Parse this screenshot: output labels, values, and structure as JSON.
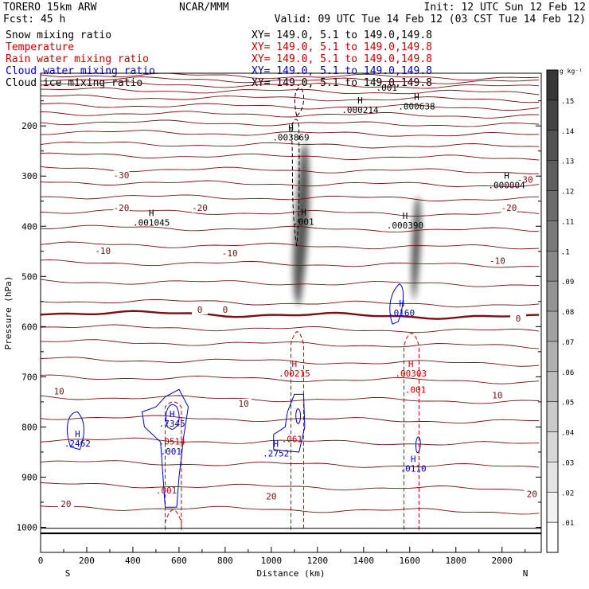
{
  "header": {
    "model": "TORERO   15km ARW",
    "org": "NCAR/MMM",
    "init": "Init: 12 UTC Sun 12 Feb 12",
    "fcst": "Fcst:   45 h",
    "valid": "Valid: 09 UTC Tue 14 Feb 12 (03 CST Tue 14 Feb 12)"
  },
  "fields": [
    {
      "name": "Snow mixing ratio",
      "xy": "XY= 149.0,  5.1 to 149.0,149.8",
      "color": "#000000"
    },
    {
      "name": "Temperature",
      "xy": "XY= 149.0,  5.1 to 149.0,149.8",
      "color": "#cc0000"
    },
    {
      "name": "Rain water mixing ratio",
      "xy": "XY= 149.0,  5.1 to 149.0,149.8",
      "color": "#cc0000"
    },
    {
      "name": "Cloud water mixing ratio",
      "xy": "XY= 149.0,  5.1 to 149.0,149.8",
      "color": "#0000cc"
    },
    {
      "name": "Cloud ice mixing ratio",
      "xy": "XY= 149.0,  5.1 to 149.0,149.8",
      "color": "#000000"
    }
  ],
  "chart_data": {
    "type": "cross-section",
    "xlabel": "Distance (km)",
    "ylabel": "Pressure (hPa)",
    "xlim": [
      0,
      2170
    ],
    "ylim": [
      1050,
      95
    ],
    "x_ticks": [
      0,
      200,
      400,
      600,
      800,
      1000,
      1200,
      1400,
      1600,
      1800,
      2000
    ],
    "y_ticks": [
      200,
      300,
      400,
      500,
      600,
      700,
      800,
      900,
      1000
    ],
    "x_end_left": "S",
    "x_end_right": "N",
    "colorbar": {
      "unit": "g kg⁻¹",
      "levels": [
        ".01",
        ".02",
        ".03",
        ".04",
        ".05",
        ".06",
        ".07",
        ".08",
        ".09",
        ".1",
        ".11",
        ".12",
        ".13",
        ".14",
        ".15"
      ]
    },
    "temperature_labels": [
      {
        "text": "-30",
        "x": 350,
        "p": 300
      },
      {
        "text": "-30",
        "x": 2100,
        "p": 308
      },
      {
        "text": "-20",
        "x": 350,
        "p": 365
      },
      {
        "text": "-20",
        "x": 690,
        "p": 365
      },
      {
        "text": "-20",
        "x": 2030,
        "p": 365
      },
      {
        "text": "-10",
        "x": 270,
        "p": 450
      },
      {
        "text": "-10",
        "x": 820,
        "p": 455
      },
      {
        "text": "-10",
        "x": 1980,
        "p": 470
      },
      {
        "text": "0",
        "x": 690,
        "p": 568
      },
      {
        "text": "0",
        "x": 800,
        "p": 568
      },
      {
        "text": "0",
        "x": 2070,
        "p": 585
      },
      {
        "text": "10",
        "x": 80,
        "p": 730
      },
      {
        "text": "10",
        "x": 880,
        "p": 755
      },
      {
        "text": "10",
        "x": 1980,
        "p": 738
      },
      {
        "text": "20",
        "x": 1000,
        "p": 940
      },
      {
        "text": "20",
        "x": 2130,
        "p": 935
      },
      {
        "text": "20",
        "x": 110,
        "p": 955
      }
    ],
    "maxima": [
      {
        "h": "H",
        "value": ".000214",
        "x": 1385,
        "p": 155,
        "color": "#000000"
      },
      {
        "h": "H",
        "value": ".000638",
        "x": 1630,
        "p": 148,
        "color": "#000000"
      },
      {
        "h": "H",
        "value": ".003869",
        "x": 1085,
        "p": 210,
        "color": "#000000"
      },
      {
        "h": "H",
        "value": ".000004",
        "x": 2020,
        "p": 305,
        "color": "#000000"
      },
      {
        "h": "H",
        "value": ".001045",
        "x": 480,
        "p": 380,
        "color": "#000000"
      },
      {
        "h": "H",
        "value": ".001",
        "x": 1140,
        "p": 378,
        "color": "#000000"
      },
      {
        "h": "H",
        "value": ".000390",
        "x": 1580,
        "p": 385,
        "color": "#000000"
      },
      {
        "h": "H",
        "value": ".0160",
        "x": 1565,
        "p": 560,
        "color": "#0000cc"
      },
      {
        "h": "H",
        "value": ".00215",
        "x": 1100,
        "p": 680,
        "color": "#cc0000"
      },
      {
        "h": "H",
        "value": ".00303",
        "x": 1605,
        "p": 680,
        "color": "#cc0000"
      },
      {
        "h": "H",
        "value": ".2462",
        "x": 160,
        "p": 820,
        "color": "#0000cc"
      },
      {
        "h": "H",
        "value": ".7345",
        "x": 570,
        "p": 780,
        "color": "#0000cc"
      },
      {
        "h": "H",
        "value": ".2752",
        "x": 1020,
        "p": 840,
        "color": "#0000cc"
      },
      {
        "h": "H",
        "value": ".0110",
        "x": 1615,
        "p": 870,
        "color": "#0000cc"
      }
    ],
    "other_labels": [
      {
        "text": ".001",
        "x": 1625,
        "p": 732,
        "color": "#cc0000"
      },
      {
        "text": ".0514",
        "x": 570,
        "p": 835,
        "color": "#cc0000"
      },
      {
        "text": ".001",
        "x": 565,
        "p": 855,
        "color": "#0000cc"
      },
      {
        "text": ".061",
        "x": 1090,
        "p": 830,
        "color": "#cc0000"
      },
      {
        "text": ".001",
        "x": 545,
        "p": 933,
        "color": "#cc0000"
      },
      {
        "text": ".001",
        "x": 1500,
        "p": 130,
        "color": "#000000"
      }
    ]
  }
}
